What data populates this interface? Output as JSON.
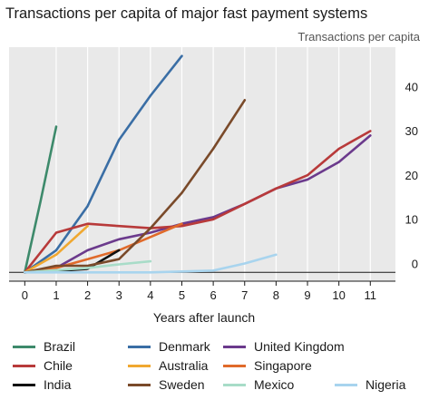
{
  "header": {
    "title": "Transactions per capita of major fast payment systems",
    "unit_label": "Transactions per capita"
  },
  "chart_data": {
    "type": "line",
    "title": "Transactions per capita of major fast payment systems",
    "xlabel": "Years after launch",
    "ylabel": "Transactions per capita",
    "xlim": [
      -0.5,
      11.8
    ],
    "ylim": [
      -2,
      51
    ],
    "x_ticks": [
      0,
      1,
      2,
      3,
      4,
      5,
      6,
      7,
      8,
      9,
      10,
      11
    ],
    "y_ticks": [
      0,
      10,
      20,
      30,
      40
    ],
    "grid": "vertical",
    "legend_position": "bottom",
    "series": [
      {
        "name": "Brazil",
        "color": "#3d8a6b",
        "x": [
          0,
          0.5,
          1
        ],
        "y": [
          0,
          16,
          33
        ]
      },
      {
        "name": "Denmark",
        "color": "#3a6ea5",
        "x": [
          0,
          1,
          2,
          3,
          4,
          5
        ],
        "y": [
          0,
          5,
          15,
          30,
          40,
          49
        ]
      },
      {
        "name": "United Kingdom",
        "color": "#6b3a8c",
        "x": [
          0,
          1,
          2,
          3,
          4,
          5,
          6,
          7,
          8,
          9,
          10,
          11
        ],
        "y": [
          0,
          1,
          5,
          7.5,
          9,
          11,
          12.5,
          15.5,
          19,
          21,
          25,
          31
        ]
      },
      {
        "name": "Chile",
        "color": "#b83a3a",
        "x": [
          0,
          1,
          2,
          3,
          4,
          5,
          6,
          7,
          8,
          9,
          10,
          11
        ],
        "y": [
          0,
          9,
          11,
          10.5,
          10,
          10.5,
          12,
          15.5,
          19,
          22,
          28,
          32
        ]
      },
      {
        "name": "Australia",
        "color": "#f0a830",
        "x": [
          0,
          1,
          2
        ],
        "y": [
          0,
          4,
          10.5
        ]
      },
      {
        "name": "Singapore",
        "color": "#e06a2a",
        "x": [
          0,
          1,
          2,
          3,
          4,
          5
        ],
        "y": [
          0,
          1,
          3,
          5,
          8,
          11
        ]
      },
      {
        "name": "India",
        "color": "#111111",
        "x": [
          0,
          1,
          2,
          3
        ],
        "y": [
          0,
          0.3,
          0.8,
          5
        ]
      },
      {
        "name": "Sweden",
        "color": "#7a4a2a",
        "x": [
          0,
          1,
          2,
          3,
          4,
          5,
          6,
          7
        ],
        "y": [
          0,
          1.5,
          1.5,
          3,
          10,
          18,
          28,
          39
        ]
      },
      {
        "name": "Mexico",
        "color": "#a8dcc8",
        "x": [
          0,
          1,
          2,
          3,
          4
        ],
        "y": [
          0,
          0.5,
          1,
          1.8,
          2.5
        ]
      },
      {
        "name": "Nigeria",
        "color": "#a8d4ee",
        "x": [
          0,
          2,
          4,
          6,
          7,
          8
        ],
        "y": [
          0,
          0,
          0,
          0.4,
          2,
          4
        ]
      }
    ]
  }
}
